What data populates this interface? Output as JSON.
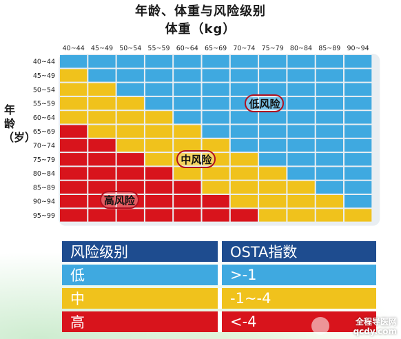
{
  "title": "年龄、体重与风险级别",
  "xaxis_title": "体重（kg）",
  "yaxis_title": "年龄（岁）",
  "chart_data": {
    "type": "heatmap",
    "title": "年龄、体重与风险级别",
    "xlabel": "体重（kg）",
    "ylabel": "年龄（岁）",
    "x_categories": [
      "40~44",
      "45~49",
      "50~54",
      "55~59",
      "60~64",
      "65~69",
      "70~74",
      "75~79",
      "80~84",
      "85~89",
      "90~94"
    ],
    "y_categories": [
      "40~44",
      "45~49",
      "50~54",
      "55~59",
      "60~64",
      "65~69",
      "70~74",
      "75~79",
      "80~84",
      "85~89",
      "90~94",
      "95~99"
    ],
    "values": [
      [
        "低",
        "低",
        "低",
        "低",
        "低",
        "低",
        "低",
        "低",
        "低",
        "低",
        "低"
      ],
      [
        "中",
        "低",
        "低",
        "低",
        "低",
        "低",
        "低",
        "低",
        "低",
        "低",
        "低"
      ],
      [
        "中",
        "中",
        "低",
        "低",
        "低",
        "低",
        "低",
        "低",
        "低",
        "低",
        "低"
      ],
      [
        "中",
        "中",
        "中",
        "低",
        "低",
        "低",
        "低",
        "低",
        "低",
        "低",
        "低"
      ],
      [
        "中",
        "中",
        "中",
        "中",
        "低",
        "低",
        "低",
        "低",
        "低",
        "低",
        "低"
      ],
      [
        "高",
        "中",
        "中",
        "中",
        "中",
        "低",
        "低",
        "低",
        "低",
        "低",
        "低"
      ],
      [
        "高",
        "高",
        "中",
        "中",
        "中",
        "中",
        "低",
        "低",
        "低",
        "低",
        "低"
      ],
      [
        "高",
        "高",
        "高",
        "中",
        "中",
        "中",
        "中",
        "低",
        "低",
        "低",
        "低"
      ],
      [
        "高",
        "高",
        "高",
        "高",
        "中",
        "中",
        "中",
        "中",
        "低",
        "低",
        "低"
      ],
      [
        "高",
        "高",
        "高",
        "高",
        "高",
        "中",
        "中",
        "中",
        "中",
        "低",
        "低"
      ],
      [
        "高",
        "高",
        "高",
        "高",
        "高",
        "高",
        "中",
        "中",
        "中",
        "中",
        "低"
      ],
      [
        "高",
        "高",
        "高",
        "高",
        "高",
        "高",
        "高",
        "中",
        "中",
        "中",
        "中"
      ]
    ],
    "zone_labels": [
      "低风险",
      "中风险",
      "高风险"
    ],
    "colors": {
      "低": "#3fa9e0",
      "中": "#f0c21c",
      "高": "#d8141c"
    }
  },
  "legend": {
    "header": [
      "风险级别",
      "OSTA指数"
    ],
    "rows": [
      {
        "level": "低",
        "osta": ">-1"
      },
      {
        "level": "中",
        "osta": "-1~-4"
      },
      {
        "level": "高",
        "osta": "<-4"
      }
    ]
  },
  "colors": {
    "header_bg": "#1e4c8f",
    "low": "#3fa9e0",
    "mid": "#f0c21c",
    "high": "#d8141c"
  },
  "watermark": {
    "line1": "全程导医网",
    "line2": "qcdy.com"
  }
}
